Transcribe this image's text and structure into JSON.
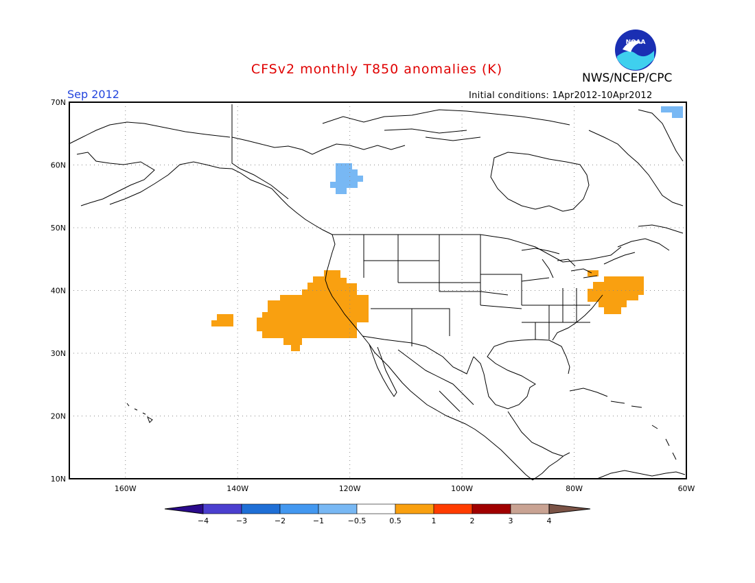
{
  "header": {
    "title": "CFSv2 monthly T850 anomalies (K)",
    "agency": "NWS/NCEP/CPC",
    "period": "Sep 2012",
    "initial_conditions": "Initial conditions: 1Apr2012-10Apr2012",
    "logo_text": "NOAA"
  },
  "map": {
    "lat_labels": [
      "70N",
      "60N",
      "50N",
      "40N",
      "30N",
      "20N",
      "10N"
    ],
    "lon_labels": [
      "160W",
      "140W",
      "120W",
      "100W",
      "80W",
      "60W"
    ],
    "lat_range": [
      10,
      70
    ],
    "lon_range": [
      -170,
      -60
    ],
    "grid": "dotted"
  },
  "colorbar": {
    "labels": [
      "-4",
      "-3",
      "-2",
      "-1",
      "-0.5",
      "0.5",
      "1",
      "2",
      "3",
      "4"
    ],
    "colors": {
      "below_-4": "#2a0a8c",
      "-4_-3": "#4b3fcf",
      "-3_-2": "#1f6fd6",
      "-2_-1": "#4398f0",
      "-1_-0.5": "#78b8f4",
      "-0.5_0.5": "#ffffff",
      "0.5_1": "#f9a010",
      "1_2": "#ff3c00",
      "2_3": "#a00000",
      "3_4": "#c9a393",
      "above_4": "#7b5346"
    }
  },
  "anomalies": {
    "warm_color": "#f9a010",
    "cool_color": "#78b8f4"
  }
}
